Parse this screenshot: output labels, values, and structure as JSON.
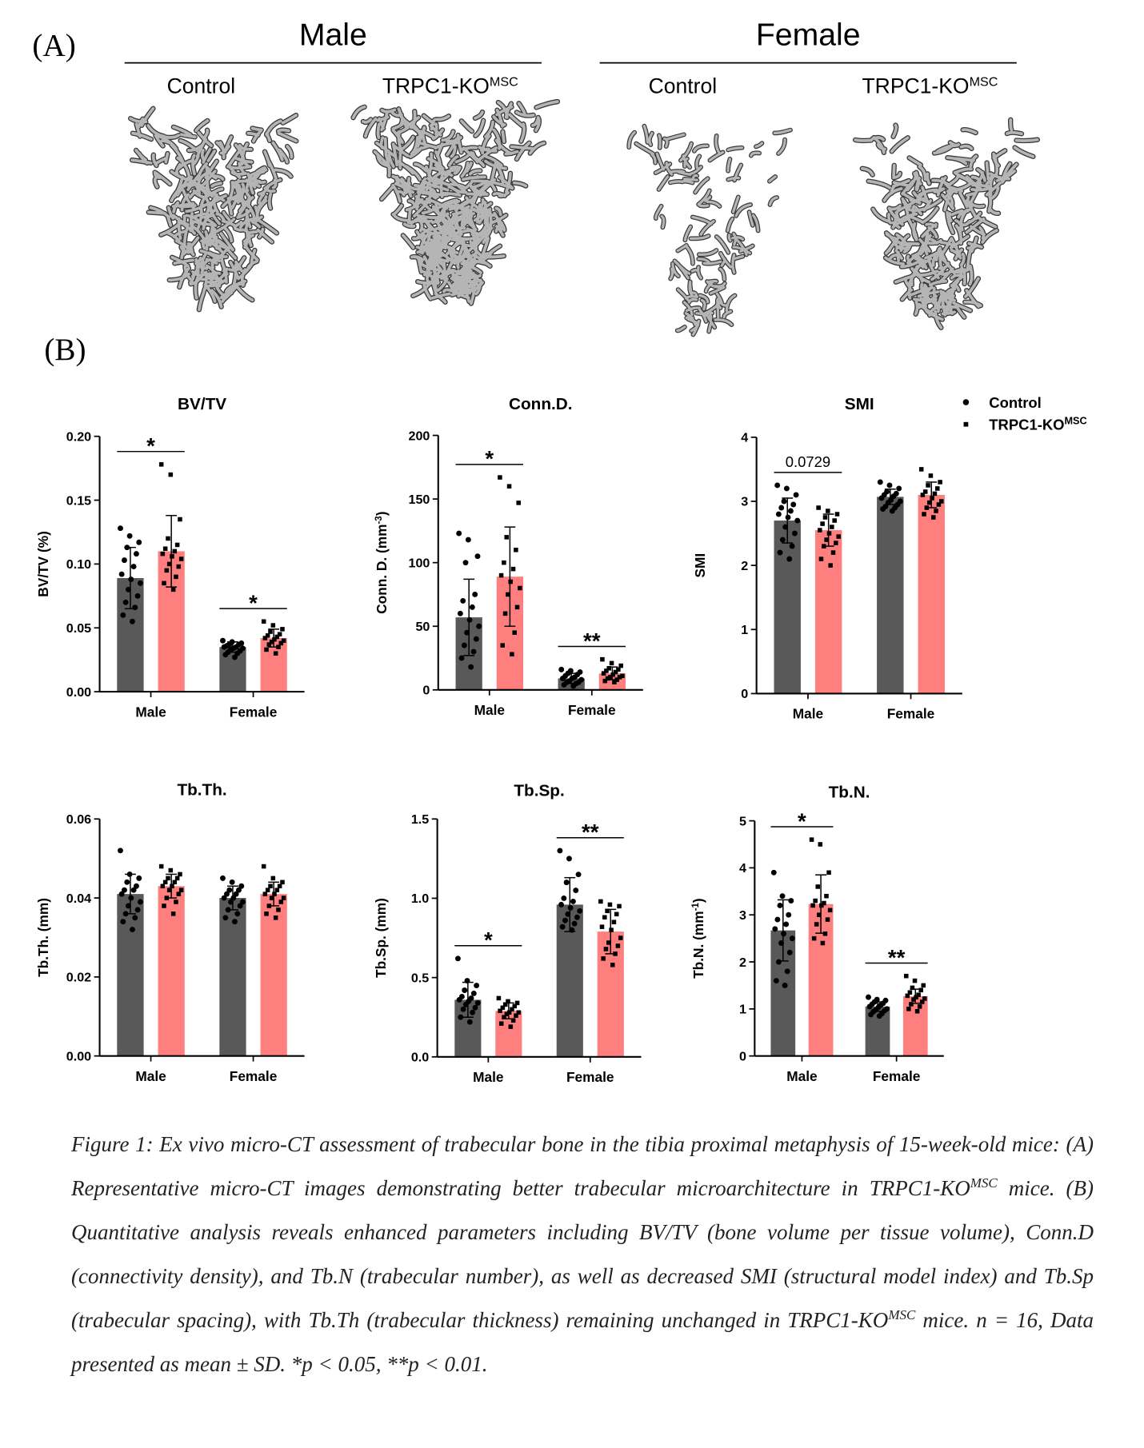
{
  "panel_a": {
    "label": "(A)",
    "groups": [
      {
        "title": "Male",
        "columns": [
          [
            {
              "text": "Control"
            }
          ],
          [
            {
              "text": "TRPC1-KO"
            },
            {
              "sup": "MSC"
            }
          ]
        ]
      },
      {
        "title": "Female",
        "columns": [
          [
            {
              "text": "Control"
            }
          ],
          [
            {
              "text": "TRPC1-KO"
            },
            {
              "sup": "MSC"
            }
          ]
        ]
      }
    ]
  },
  "panel_b": {
    "label": "(B)"
  },
  "legend": {
    "entries": [
      {
        "name": [
          {
            "text": "Control"
          }
        ],
        "marker": "circle"
      },
      {
        "name": [
          {
            "text": "TRPC1-KO"
          },
          {
            "sup": "MSC"
          }
        ],
        "marker": "square"
      }
    ]
  },
  "chart_data": [
    {
      "type": "bar",
      "title": "BV/TV",
      "ylabel": [
        {
          "text": "BV/TV (%)"
        }
      ],
      "categories": [
        "Male",
        "Female"
      ],
      "ylim": [
        0,
        0.2
      ],
      "yticks": [
        {
          "value": 0,
          "label": "0.00"
        },
        {
          "value": 0.05,
          "label": "0.05"
        },
        {
          "value": 0.1,
          "label": "0.10"
        },
        {
          "value": 0.15,
          "label": "0.15"
        },
        {
          "value": 0.2,
          "label": "0.20"
        }
      ],
      "significance": [
        "*",
        "*"
      ],
      "series": [
        {
          "color": "#595959",
          "marker": "circle",
          "values": [
            0.089,
            0.035
          ],
          "errors": [
            0.024,
            0.004
          ],
          "points": [
            [
              0.128,
              0.122,
              0.117,
              0.113,
              0.108,
              0.103,
              0.098,
              0.092,
              0.088,
              0.085,
              0.08,
              0.075,
              0.07,
              0.066,
              0.06,
              0.055
            ],
            [
              0.04,
              0.039,
              0.038,
              0.037,
              0.037,
              0.036,
              0.035,
              0.035,
              0.034,
              0.034,
              0.033,
              0.032,
              0.031,
              0.03,
              0.029,
              0.027
            ]
          ]
        },
        {
          "color": "#ff7f7f",
          "marker": "square",
          "values": [
            0.11,
            0.042
          ],
          "errors": [
            0.028,
            0.007
          ],
          "points": [
            [
              0.178,
              0.17,
              0.135,
              0.12,
              0.115,
              0.112,
              0.11,
              0.108,
              0.106,
              0.104,
              0.1,
              0.098,
              0.095,
              0.09,
              0.085,
              0.08
            ],
            [
              0.055,
              0.052,
              0.049,
              0.047,
              0.045,
              0.044,
              0.043,
              0.042,
              0.041,
              0.04,
              0.039,
              0.038,
              0.037,
              0.035,
              0.033,
              0.03
            ]
          ]
        }
      ]
    },
    {
      "type": "bar",
      "title": "Conn.D.",
      "ylabel": [
        {
          "text": "Conn. D. (mm"
        },
        {
          "sup": "-3"
        },
        {
          "text": ")"
        }
      ],
      "categories": [
        "Male",
        "Female"
      ],
      "ylim": [
        0,
        200
      ],
      "yticks": [
        0,
        50,
        100,
        150,
        200
      ],
      "significance": [
        "*",
        "**"
      ],
      "series": [
        {
          "color": "#595959",
          "marker": "circle",
          "values": [
            57,
            9
          ],
          "errors": [
            30,
            4
          ],
          "points": [
            [
              123,
              118,
              105,
              100,
              75,
              70,
              65,
              60,
              55,
              50,
              45,
              40,
              35,
              30,
              25,
              18
            ],
            [
              16,
              15,
              14,
              13,
              12,
              11,
              10,
              9,
              9,
              8,
              7,
              6,
              6,
              5,
              4,
              3
            ]
          ]
        },
        {
          "color": "#ff7f7f",
          "marker": "square",
          "values": [
            89,
            13
          ],
          "errors": [
            39,
            5
          ],
          "points": [
            [
              167,
              160,
              147,
              120,
              110,
              100,
              95,
              90,
              85,
              80,
              75,
              65,
              60,
              45,
              35,
              28
            ],
            [
              24,
              21,
              19,
              17,
              16,
              15,
              14,
              13,
              12,
              11,
              10,
              10,
              9,
              8,
              7,
              6
            ]
          ]
        }
      ]
    },
    {
      "type": "bar",
      "title": "SMI",
      "ylabel": [
        {
          "text": "SMI"
        }
      ],
      "categories": [
        "Male",
        "Female"
      ],
      "ylim": [
        0,
        4
      ],
      "yticks": [
        0,
        1,
        2,
        3,
        4
      ],
      "significance": [
        "0.0729",
        null
      ],
      "series": [
        {
          "color": "#595959",
          "marker": "circle",
          "values": [
            2.7,
            3.07
          ],
          "errors": [
            0.35,
            0.12
          ],
          "points": [
            [
              3.25,
              3.2,
              3.1,
              3.0,
              2.95,
              2.9,
              2.85,
              2.8,
              2.75,
              2.7,
              2.6,
              2.5,
              2.4,
              2.3,
              2.2,
              2.1
            ],
            [
              3.3,
              3.25,
              3.2,
              3.15,
              3.12,
              3.1,
              3.08,
              3.05,
              3.02,
              3.0,
              2.98,
              2.95,
              2.92,
              2.9,
              2.88,
              2.85
            ]
          ]
        },
        {
          "color": "#ff7f7f",
          "marker": "square",
          "values": [
            2.55,
            3.1
          ],
          "errors": [
            0.25,
            0.2
          ],
          "points": [
            [
              2.9,
              2.85,
              2.8,
              2.75,
              2.7,
              2.65,
              2.6,
              2.55,
              2.5,
              2.45,
              2.4,
              2.35,
              2.3,
              2.2,
              2.1,
              2.0
            ],
            [
              3.5,
              3.4,
              3.3,
              3.25,
              3.2,
              3.15,
              3.12,
              3.1,
              3.05,
              3.0,
              2.98,
              2.95,
              2.9,
              2.85,
              2.8,
              2.75
            ]
          ]
        }
      ]
    },
    {
      "type": "bar",
      "title": "Tb.Th.",
      "ylabel": [
        {
          "text": "Tb.Th. (mm)"
        }
      ],
      "categories": [
        "Male",
        "Female"
      ],
      "ylim": [
        0,
        0.06
      ],
      "yticks": [
        {
          "value": 0,
          "label": "0.00"
        },
        {
          "value": 0.02,
          "label": "0.02"
        },
        {
          "value": 0.04,
          "label": "0.04"
        },
        {
          "value": 0.06,
          "label": "0.06"
        }
      ],
      "significance": [
        null,
        null
      ],
      "series": [
        {
          "color": "#595959",
          "marker": "circle",
          "values": [
            0.041,
            0.04
          ],
          "errors": [
            0.005,
            0.003
          ],
          "points": [
            [
              0.052,
              0.046,
              0.045,
              0.044,
              0.043,
              0.042,
              0.042,
              0.041,
              0.04,
              0.039,
              0.038,
              0.037,
              0.036,
              0.035,
              0.034,
              0.032
            ],
            [
              0.045,
              0.044,
              0.043,
              0.042,
              0.042,
              0.041,
              0.041,
              0.04,
              0.04,
              0.039,
              0.039,
              0.038,
              0.037,
              0.036,
              0.035,
              0.034
            ]
          ]
        },
        {
          "color": "#ff7f7f",
          "marker": "square",
          "values": [
            0.043,
            0.041
          ],
          "errors": [
            0.003,
            0.003
          ],
          "points": [
            [
              0.048,
              0.047,
              0.046,
              0.045,
              0.045,
              0.044,
              0.044,
              0.043,
              0.043,
              0.042,
              0.042,
              0.041,
              0.04,
              0.039,
              0.038,
              0.036
            ],
            [
              0.048,
              0.045,
              0.044,
              0.043,
              0.043,
              0.042,
              0.042,
              0.041,
              0.041,
              0.04,
              0.04,
              0.039,
              0.038,
              0.037,
              0.036,
              0.035
            ]
          ]
        }
      ]
    },
    {
      "type": "bar",
      "title": "Tb.Sp.",
      "ylabel": [
        {
          "text": "Tb.Sp. (mm)"
        }
      ],
      "categories": [
        "Male",
        "Female"
      ],
      "ylim": [
        0,
        1.5
      ],
      "yticks": [
        {
          "value": 0,
          "label": "0.0"
        },
        0.5,
        {
          "value": 1,
          "label": "1.0"
        },
        1.5
      ],
      "significance": [
        "*",
        "**"
      ],
      "series": [
        {
          "color": "#595959",
          "marker": "circle",
          "values": [
            0.36,
            0.96
          ],
          "errors": [
            0.11,
            0.17
          ],
          "points": [
            [
              0.62,
              0.48,
              0.45,
              0.42,
              0.4,
              0.38,
              0.37,
              0.36,
              0.35,
              0.34,
              0.33,
              0.31,
              0.3,
              0.28,
              0.25,
              0.22
            ],
            [
              1.3,
              1.25,
              1.15,
              1.1,
              1.05,
              1.0,
              0.98,
              0.96,
              0.94,
              0.92,
              0.9,
              0.88,
              0.86,
              0.84,
              0.82,
              0.8
            ]
          ]
        },
        {
          "color": "#ff7f7f",
          "marker": "square",
          "values": [
            0.29,
            0.79
          ],
          "errors": [
            0.05,
            0.14
          ],
          "points": [
            [
              0.37,
              0.35,
              0.34,
              0.33,
              0.32,
              0.31,
              0.3,
              0.29,
              0.28,
              0.28,
              0.27,
              0.26,
              0.25,
              0.23,
              0.21,
              0.19
            ],
            [
              0.98,
              0.96,
              0.95,
              0.92,
              0.9,
              0.88,
              0.85,
              0.82,
              0.8,
              0.75,
              0.72,
              0.7,
              0.68,
              0.65,
              0.62,
              0.58
            ]
          ]
        }
      ]
    },
    {
      "type": "bar",
      "title": "Tb.N.",
      "ylabel": [
        {
          "text": "Tb.N. (mm"
        },
        {
          "sup": "-1"
        },
        {
          "text": ")"
        }
      ],
      "categories": [
        "Male",
        "Female"
      ],
      "ylim": [
        0,
        5
      ],
      "yticks": [
        0,
        1,
        2,
        3,
        4,
        5
      ],
      "significance": [
        "*",
        "**"
      ],
      "series": [
        {
          "color": "#595959",
          "marker": "circle",
          "values": [
            2.67,
            1.05
          ],
          "errors": [
            0.65,
            0.1
          ],
          "points": [
            [
              3.9,
              3.4,
              3.3,
              3.2,
              3.0,
              2.9,
              2.8,
              2.7,
              2.6,
              2.5,
              2.4,
              2.2,
              2.0,
              1.8,
              1.6,
              1.5
            ],
            [
              1.25,
              1.2,
              1.18,
              1.15,
              1.12,
              1.1,
              1.08,
              1.05,
              1.03,
              1.0,
              0.98,
              0.96,
              0.94,
              0.9,
              0.88,
              0.85
            ]
          ]
        },
        {
          "color": "#ff7f7f",
          "marker": "square",
          "values": [
            3.23,
            1.27
          ],
          "errors": [
            0.62,
            0.15
          ],
          "points": [
            [
              4.6,
              4.5,
              3.9,
              3.6,
              3.4,
              3.3,
              3.25,
              3.2,
              3.2,
              3.1,
              3.0,
              2.9,
              2.8,
              2.6,
              2.5,
              2.4
            ],
            [
              1.7,
              1.6,
              1.5,
              1.45,
              1.4,
              1.35,
              1.3,
              1.28,
              1.25,
              1.22,
              1.2,
              1.15,
              1.1,
              1.05,
              1.0,
              0.95
            ]
          ]
        }
      ]
    }
  ],
  "caption": [
    {
      "text": "Figure 1: Ex vivo micro-CT assessment of trabecular bone in the tibia proximal metaphysis of 15-week-old mice: (A) Representative micro-CT images demonstrating better trabecular microarchitecture in TRPC1-KO"
    },
    {
      "sup": "MSC"
    },
    {
      "text": " mice. (B) Quantitative analysis reveals enhanced parameters including BV/TV (bone volume per tissue volume), Conn.D (connectivity density), and Tb.N (trabecular number), as well as decreased SMI (structural model index) and Tb.Sp (trabecular spacing), with Tb.Th (trabecular thickness) remaining unchanged in TRPC1-KO"
    },
    {
      "sup": "MSC"
    },
    {
      "text": " mice. n = 16, Data presented as mean ± SD. *p < 0.05, **p < 0.01."
    }
  ]
}
